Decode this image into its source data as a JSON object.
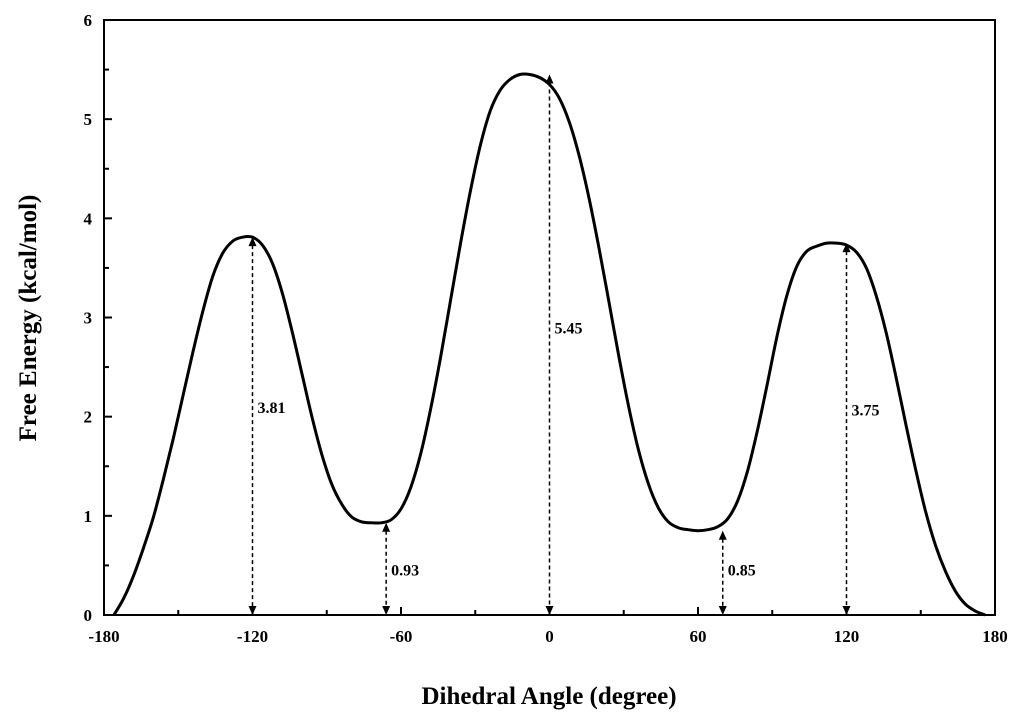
{
  "chart_data": {
    "type": "line",
    "xlabel": "Dihedral Angle (degree)",
    "ylabel": "Free Energy (kcal/mol)",
    "xlim": [
      -180,
      180
    ],
    "ylim": [
      0,
      6
    ],
    "xticks": [
      -180,
      -120,
      -60,
      0,
      60,
      120,
      180
    ],
    "yticks": [
      0,
      1,
      2,
      3,
      4,
      5,
      6
    ],
    "grid": false,
    "colors": {
      "line": "#000000",
      "axis": "#000000"
    },
    "series": [
      {
        "x": [
          -176,
          -172,
          -168,
          -164,
          -160,
          -156,
          -152,
          -148,
          -144,
          -140,
          -136,
          -132,
          -128,
          -124,
          -120,
          -116,
          -112,
          -108,
          -104,
          -100,
          -96,
          -92,
          -88,
          -84,
          -80,
          -76,
          -72,
          -68,
          -64,
          -60,
          -56,
          -52,
          -48,
          -44,
          -40,
          -36,
          -32,
          -28,
          -24,
          -20,
          -16,
          -12,
          -8,
          -4,
          0,
          4,
          8,
          12,
          16,
          20,
          24,
          28,
          32,
          36,
          40,
          44,
          48,
          52,
          56,
          60,
          64,
          68,
          72,
          76,
          80,
          84,
          88,
          92,
          96,
          100,
          104,
          108,
          112,
          116,
          120,
          124,
          128,
          132,
          136,
          140,
          144,
          148,
          152,
          156,
          160,
          164,
          168,
          172,
          176
        ],
        "y": [
          0.0,
          0.17,
          0.4,
          0.68,
          0.99,
          1.37,
          1.78,
          2.22,
          2.66,
          3.07,
          3.42,
          3.65,
          3.77,
          3.81,
          3.81,
          3.73,
          3.55,
          3.25,
          2.86,
          2.43,
          2.0,
          1.62,
          1.32,
          1.12,
          0.99,
          0.94,
          0.93,
          0.93,
          0.96,
          1.07,
          1.29,
          1.63,
          2.08,
          2.6,
          3.17,
          3.74,
          4.27,
          4.73,
          5.08,
          5.29,
          5.4,
          5.45,
          5.45,
          5.42,
          5.35,
          5.21,
          4.97,
          4.63,
          4.2,
          3.7,
          3.16,
          2.61,
          2.1,
          1.66,
          1.32,
          1.08,
          0.94,
          0.88,
          0.86,
          0.85,
          0.86,
          0.89,
          0.97,
          1.15,
          1.45,
          1.86,
          2.33,
          2.82,
          3.23,
          3.52,
          3.67,
          3.72,
          3.75,
          3.75,
          3.73,
          3.66,
          3.5,
          3.22,
          2.85,
          2.4,
          1.92,
          1.46,
          1.04,
          0.7,
          0.44,
          0.24,
          0.11,
          0.04,
          0.0
        ]
      }
    ],
    "annotations": [
      {
        "x": -120,
        "y": 3.81,
        "label": "3.81",
        "label_y": 2.1
      },
      {
        "x": -66,
        "y": 0.93,
        "label": "0.93",
        "label_y": 0.46
      },
      {
        "x": 0,
        "y": 5.45,
        "label": "5.45",
        "label_y": 2.9
      },
      {
        "x": 70,
        "y": 0.85,
        "label": "0.85",
        "label_y": 0.46
      },
      {
        "x": 120,
        "y": 3.75,
        "label": "3.75",
        "label_y": 2.07
      }
    ]
  }
}
